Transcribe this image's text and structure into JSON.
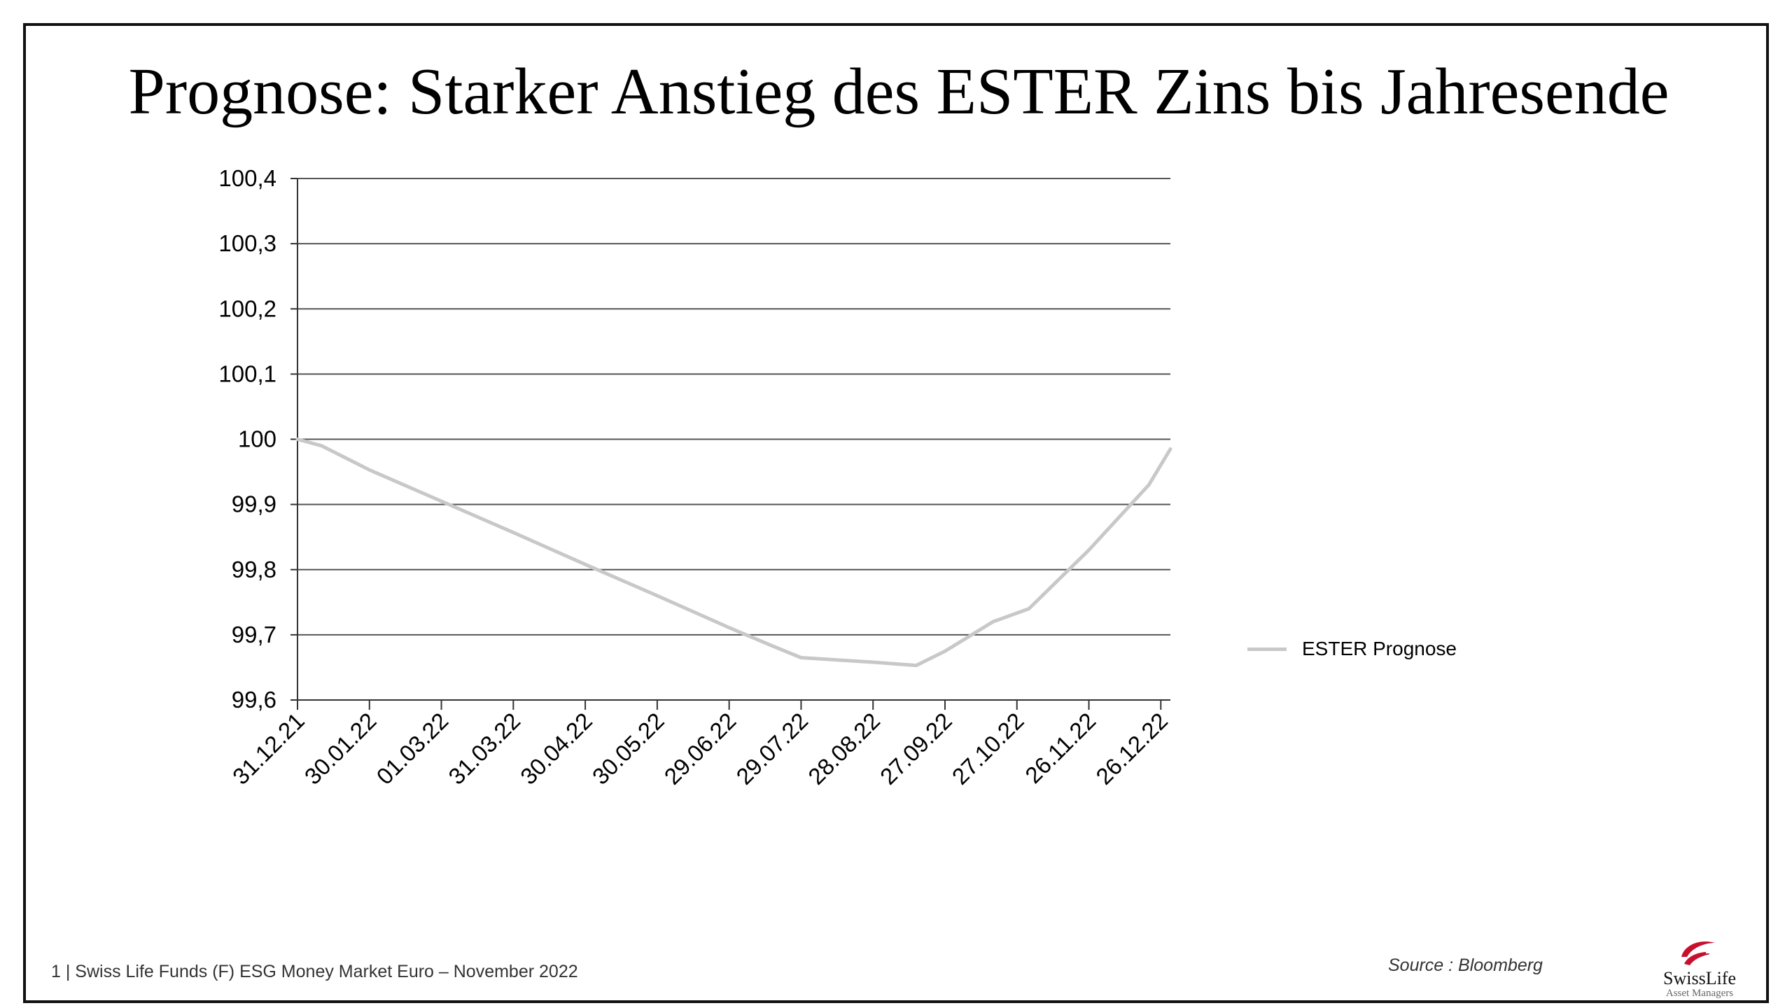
{
  "page": {
    "title": "Prognose: Starker Anstieg des ESTER Zins bis Jahresende",
    "footer": "1 | Swiss Life Funds (F) ESG Money Market Euro – November 2022",
    "source": "Source :  Bloomberg",
    "logo": {
      "name": "SwissLife",
      "subtitle": "Asset Managers",
      "color": "#c8102e"
    }
  },
  "chart_data": {
    "type": "line",
    "title": "",
    "xlabel": "",
    "ylabel": "",
    "ylim": [
      99.6,
      100.4
    ],
    "yticks": [
      "100,4",
      "100,3",
      "100,2",
      "100,1",
      "100",
      "99,9",
      "99,8",
      "99,7",
      "99,6"
    ],
    "ytick_values": [
      100.4,
      100.3,
      100.2,
      100.1,
      100.0,
      99.9,
      99.8,
      99.7,
      99.6
    ],
    "xticks": [
      "31.12.21",
      "30.01.22",
      "01.03.22",
      "31.03.22",
      "30.04.22",
      "30.05.22",
      "29.06.22",
      "29.07.22",
      "28.08.22",
      "27.09.22",
      "27.10.22",
      "26.11.22",
      "26.12.22"
    ],
    "xtick_days": [
      0,
      30,
      60,
      90,
      120,
      150,
      180,
      210,
      240,
      270,
      300,
      330,
      360
    ],
    "xlim_days": [
      0,
      364
    ],
    "grid": true,
    "legend_position": "right",
    "series": [
      {
        "name": "ESTER Prognose",
        "color": "#c8c8c8",
        "x_days": [
          0,
          10,
          30,
          60,
          90,
          120,
          150,
          180,
          198,
          210,
          240,
          258,
          270,
          290,
          305,
          330,
          355,
          364
        ],
        "values": [
          100.0,
          99.99,
          99.953,
          99.905,
          99.857,
          99.808,
          99.76,
          99.711,
          99.683,
          99.665,
          99.658,
          99.653,
          99.675,
          99.72,
          99.74,
          99.83,
          99.93,
          99.985
        ]
      }
    ]
  }
}
